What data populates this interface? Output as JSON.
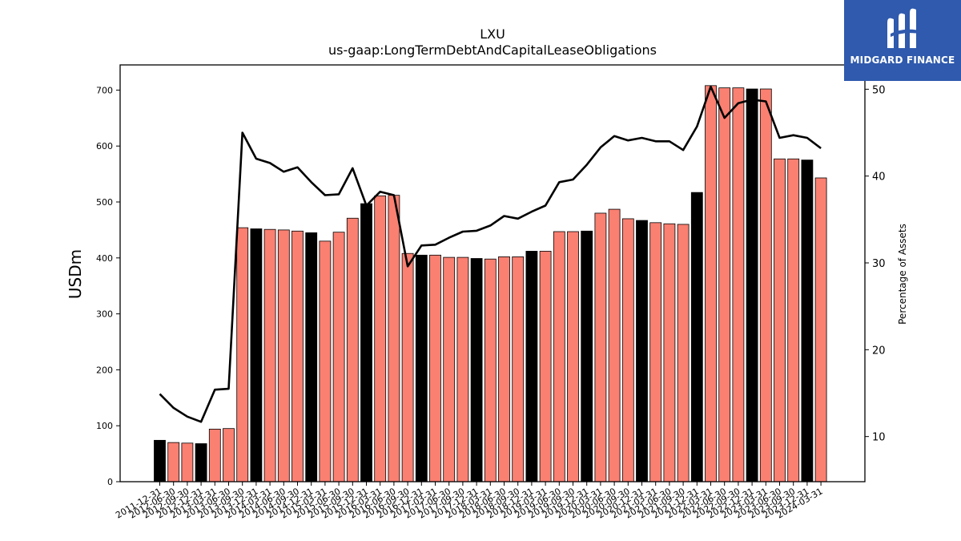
{
  "title": "LXU",
  "subtitle": "us-gaap:LongTermDebtAndCapitalLeaseObligations",
  "logo": {
    "text": "MIDGARD FINANCE",
    "icon": "midgard-logo-icon",
    "color": "#2f5aad"
  },
  "colors": {
    "bar_default": "#fa8072",
    "bar_highlight": "#000000",
    "line": "#000000"
  },
  "chart_data": {
    "type": "bar",
    "title": "LXU",
    "subtitle": "us-gaap:LongTermDebtAndCapitalLeaseObligations",
    "ylabel": "USDm",
    "y2label": "Percentage of Assets",
    "ylim": [
      0,
      745
    ],
    "y2lim": [
      4.8,
      52.8
    ],
    "yticks": [
      0,
      100,
      200,
      300,
      400,
      500,
      600,
      700
    ],
    "y2ticks": [
      10,
      20,
      30,
      40,
      50
    ],
    "categories": [
      "2011-12-31",
      "2012-06-30",
      "2012-09-30",
      "2012-12-31",
      "2013-03-31",
      "2013-06-30",
      "2013-09-30",
      "2013-12-31",
      "2014-03-31",
      "2014-06-30",
      "2014-09-30",
      "2014-12-31",
      "2015-03-31",
      "2015-06-30",
      "2015-09-30",
      "2015-12-31",
      "2016-03-31",
      "2016-06-30",
      "2016-09-30",
      "2016-12-31",
      "2017-03-31",
      "2017-06-30",
      "2017-09-30",
      "2017-12-31",
      "2018-03-31",
      "2018-06-30",
      "2018-09-30",
      "2018-12-31",
      "2019-03-31",
      "2019-06-30",
      "2019-09-30",
      "2019-12-31",
      "2020-03-31",
      "2020-06-30",
      "2020-09-30",
      "2020-12-31",
      "2021-03-31",
      "2021-06-30",
      "2021-09-30",
      "2021-12-31",
      "2022-03-31",
      "2022-06-30",
      "2022-09-30",
      "2022-12-31",
      "2023-03-31",
      "2023-06-30",
      "2023-09-30",
      "2023-12-31",
      "2024-03-31"
    ],
    "series": [
      {
        "type": "bar",
        "values": [
          74,
          70,
          69,
          68,
          94,
          95,
          454,
          452,
          451,
          450,
          448,
          445,
          430,
          446,
          471,
          497,
          511,
          512,
          408,
          405,
          405,
          401,
          401,
          399,
          398,
          402,
          402,
          412,
          412,
          447,
          447,
          448,
          480,
          487,
          470,
          467,
          463,
          461,
          460,
          517,
          708,
          704,
          704,
          702,
          702,
          577,
          577,
          575,
          543
        ],
        "highlight": [
          true,
          false,
          false,
          true,
          false,
          false,
          false,
          true,
          false,
          false,
          false,
          true,
          false,
          false,
          false,
          true,
          false,
          false,
          false,
          true,
          false,
          false,
          false,
          true,
          false,
          false,
          false,
          true,
          false,
          false,
          false,
          true,
          false,
          false,
          false,
          true,
          false,
          false,
          false,
          true,
          false,
          false,
          false,
          true,
          false,
          false,
          false,
          true,
          false
        ]
      },
      {
        "type": "line",
        "axis": "right",
        "values": [
          14.9,
          13.3,
          12.3,
          11.7,
          15.4,
          15.5,
          45.0,
          42.0,
          41.5,
          40.5,
          41.0,
          39.3,
          37.8,
          37.9,
          40.9,
          36.6,
          38.2,
          37.8,
          29.6,
          32.0,
          32.1,
          32.9,
          33.6,
          33.7,
          34.3,
          35.4,
          35.1,
          35.9,
          36.6,
          39.3,
          39.6,
          41.3,
          43.3,
          44.6,
          44.1,
          44.4,
          44.0,
          44.0,
          43.0,
          45.7,
          50.3,
          46.7,
          48.4,
          48.8,
          48.6,
          44.4,
          44.7,
          44.4,
          43.2
        ]
      }
    ]
  }
}
